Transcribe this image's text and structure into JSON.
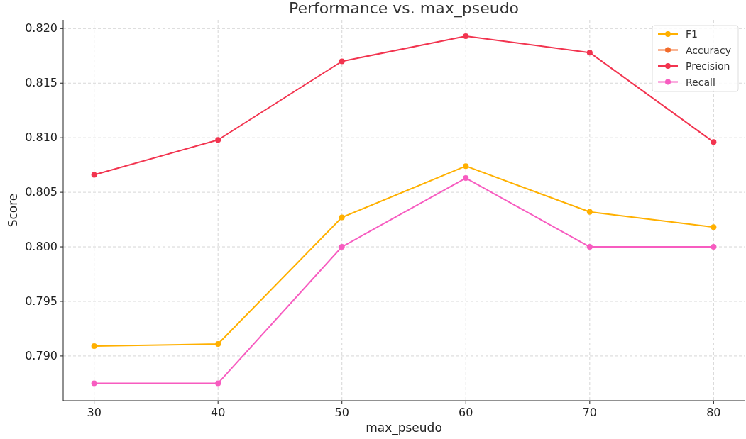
{
  "chart_data": {
    "type": "line",
    "title": "Performance vs. max_pseudo",
    "xlabel": "max_pseudo",
    "ylabel": "Score",
    "x": [
      30,
      40,
      50,
      60,
      70,
      80
    ],
    "series": [
      {
        "name": "F1",
        "color": "#ffb000",
        "values": [
          0.7909,
          0.7911,
          0.8027,
          0.8074,
          0.8032,
          0.8018
        ]
      },
      {
        "name": "Accuracy",
        "color": "#f26b2a",
        "values": [
          null,
          null,
          null,
          null,
          null,
          null
        ]
      },
      {
        "name": "Precision",
        "color": "#f2344f",
        "values": [
          0.8066,
          0.8098,
          0.817,
          0.8193,
          0.8178,
          0.8096
        ]
      },
      {
        "name": "Recall",
        "color": "#f75cc0",
        "values": [
          0.7875,
          0.7875,
          0.8,
          0.8063,
          0.8,
          0.8
        ]
      }
    ],
    "xlim": [
      27.5,
      82.5
    ],
    "xticks": [
      30,
      40,
      50,
      60,
      70,
      80
    ],
    "ylim": [
      0.7859,
      0.8208
    ],
    "yticks": [
      {
        "value": 0.79,
        "label": "0.790"
      },
      {
        "value": 0.795,
        "label": "0.795"
      },
      {
        "value": 0.8,
        "label": "0.800"
      },
      {
        "value": 0.805,
        "label": "0.805"
      },
      {
        "value": 0.81,
        "label": "0.810"
      },
      {
        "value": 0.815,
        "label": "0.815"
      },
      {
        "value": 0.82,
        "label": "0.820"
      }
    ],
    "grid": true,
    "legend": "top right",
    "marker": "circle",
    "line_style": "solid"
  }
}
